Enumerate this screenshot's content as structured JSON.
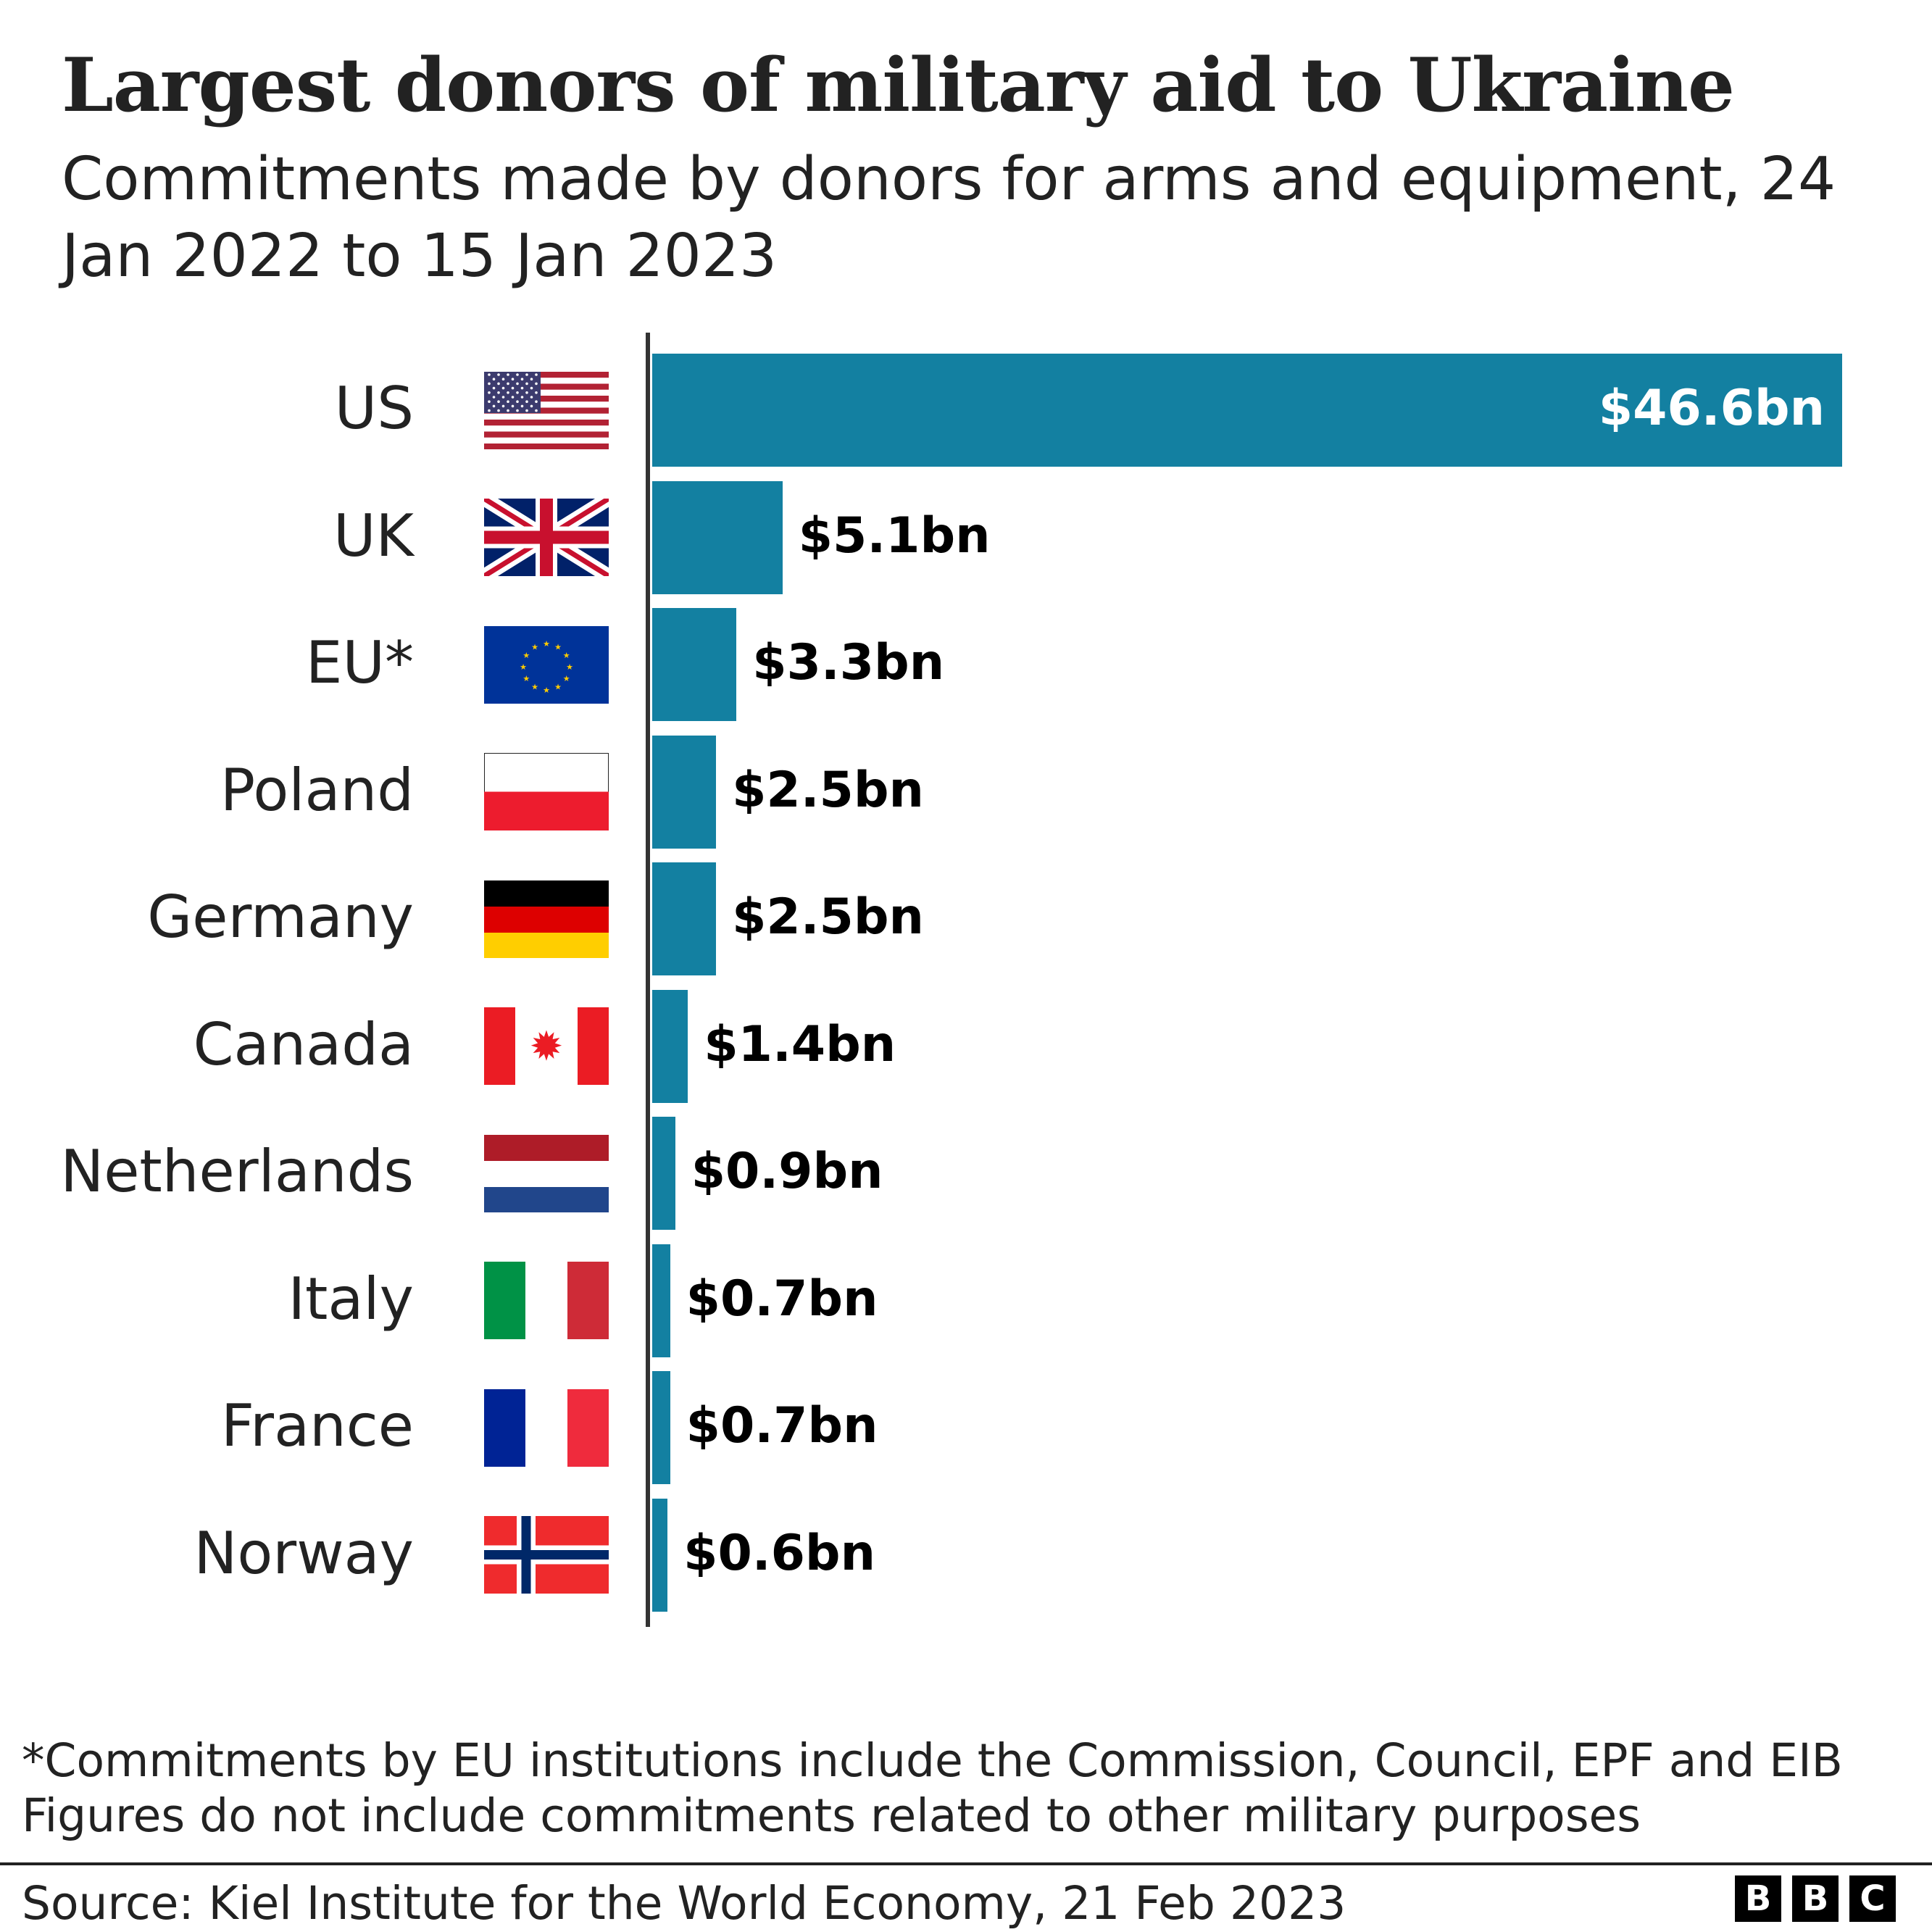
{
  "title": "Largest donors of military aid to Ukraine",
  "subtitle": "Commitments made by donors for arms and equipment, 24 Jan 2022 to 15 Jan 2023",
  "chart_data": {
    "type": "bar",
    "orientation": "horizontal",
    "title": "Largest donors of military aid to Ukraine",
    "subtitle": "Commitments made by donors for arms and equipment, 24 Jan 2022 to 15 Jan 2023",
    "unit": "US$ billion",
    "categories": [
      "US",
      "UK",
      "EU*",
      "Poland",
      "Germany",
      "Canada",
      "Netherlands",
      "Italy",
      "France",
      "Norway"
    ],
    "values": [
      46.6,
      5.1,
      3.3,
      2.5,
      2.5,
      1.4,
      0.9,
      0.7,
      0.7,
      0.6
    ],
    "data_labels": [
      "$46.6bn",
      "$5.1bn",
      "$3.3bn",
      "$2.5bn",
      "$2.5bn",
      "$1.4bn",
      "$0.9bn",
      "$0.7bn",
      "$0.7bn",
      "$0.6bn"
    ],
    "flags": [
      "us-flag-icon",
      "uk-flag-icon",
      "eu-flag-icon",
      "poland-flag-icon",
      "germany-flag-icon",
      "canada-flag-icon",
      "netherlands-flag-icon",
      "italy-flag-icon",
      "france-flag-icon",
      "norway-flag-icon"
    ],
    "bar_color": "#1380A1",
    "xlim": [
      0,
      46.6
    ],
    "grid": false,
    "legend": "none"
  },
  "notes": [
    "*Commitments by EU institutions include the Commission, Council, EPF and EIB",
    "Figures do not include commitments related to other military purposes"
  ],
  "source": "Source: Kiel Institute for the World Economy, 21 Feb 2023",
  "logo": [
    "B",
    "B",
    "C"
  ]
}
